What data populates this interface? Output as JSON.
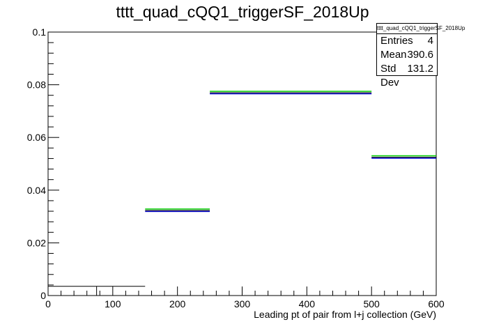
{
  "chart_data": {
    "type": "bar",
    "title": "tttt_quad_cQQ1_triggerSF_2018Up",
    "xlabel": "Leading pt of pair from l+j collection (GeV)",
    "ylabel": "",
    "xlim": [
      0,
      600
    ],
    "ylim": [
      0,
      0.1
    ],
    "bins": [
      {
        "x_low": 0,
        "x_high": 150,
        "value": 0.0035
      },
      {
        "x_low": 150,
        "x_high": 250,
        "value": 0.0323
      },
      {
        "x_low": 250,
        "x_high": 500,
        "value": 0.077
      },
      {
        "x_low": 500,
        "x_high": 600,
        "value": 0.0525
      }
    ],
    "x_ticks": [
      "0",
      "100",
      "200",
      "300",
      "400",
      "500",
      "600"
    ],
    "y_ticks": [
      "0",
      "0.02",
      "0.04",
      "0.06",
      "0.08",
      "0.1"
    ],
    "series_colors": [
      "#000000",
      "#00cc00",
      "#0000cc"
    ],
    "stats": {
      "name": "tttt_quad_cQQ1_triggerSF_2018Up",
      "entries_label": "Entries",
      "entries": "4",
      "mean_label": "Mean",
      "mean": "390.6",
      "stddev_label": "Std Dev",
      "stddev": "131.2"
    }
  }
}
